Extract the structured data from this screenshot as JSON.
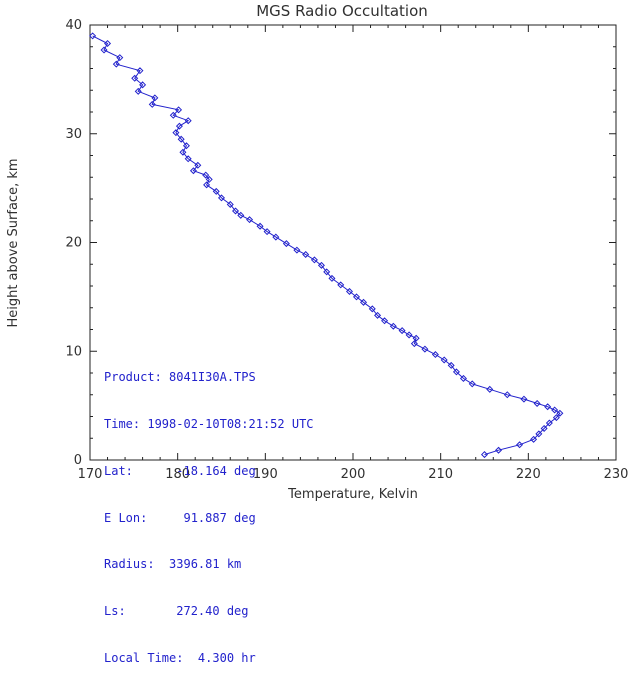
{
  "colors": {
    "line": "#2222cc",
    "axis": "#222222",
    "text": "#303030",
    "background": "#ffffff"
  },
  "annotation": {
    "lines": [
      "Product: 8041I30A.TPS",
      "Time: 1998-02-10T08:21:52 UTC",
      "Lat:      -18.164 deg",
      "E Lon:     91.887 deg",
      "Radius:  3396.81 km",
      "Ls:       272.40 deg",
      "Local Time:  4.300 hr"
    ]
  },
  "chart_data": {
    "type": "line",
    "title": "MGS Radio Occultation",
    "xlabel": "Temperature, Kelvin",
    "ylabel": "Height above Surface, km",
    "xlim": [
      170,
      230
    ],
    "ylim": [
      0,
      40
    ],
    "xticks": [
      170,
      180,
      190,
      200,
      210,
      220,
      230
    ],
    "yticks": [
      0,
      10,
      20,
      30,
      40
    ],
    "x_minor_step": 2,
    "y_minor_step": 2,
    "grid": false,
    "legend": "none",
    "line_color": "#2222cc",
    "marker": "diamond",
    "series": [
      {
        "name": "temperature-profile",
        "points": [
          [
            170.3,
            39.0
          ],
          [
            172.0,
            38.3
          ],
          [
            171.6,
            37.7
          ],
          [
            173.4,
            37.0
          ],
          [
            173.0,
            36.4
          ],
          [
            175.7,
            35.8
          ],
          [
            175.1,
            35.1
          ],
          [
            176.0,
            34.5
          ],
          [
            175.5,
            33.9
          ],
          [
            177.4,
            33.3
          ],
          [
            177.1,
            32.7
          ],
          [
            180.1,
            32.2
          ],
          [
            179.5,
            31.7
          ],
          [
            181.2,
            31.2
          ],
          [
            180.2,
            30.7
          ],
          [
            179.8,
            30.1
          ],
          [
            180.4,
            29.5
          ],
          [
            181.0,
            28.9
          ],
          [
            180.6,
            28.3
          ],
          [
            181.2,
            27.7
          ],
          [
            182.3,
            27.1
          ],
          [
            181.8,
            26.6
          ],
          [
            183.2,
            26.2
          ],
          [
            183.6,
            25.8
          ],
          [
            183.3,
            25.3
          ],
          [
            184.4,
            24.7
          ],
          [
            185.0,
            24.1
          ],
          [
            186.0,
            23.5
          ],
          [
            186.6,
            22.9
          ],
          [
            187.2,
            22.5
          ],
          [
            188.2,
            22.1
          ],
          [
            189.4,
            21.5
          ],
          [
            190.2,
            21.0
          ],
          [
            191.2,
            20.5
          ],
          [
            192.4,
            19.9
          ],
          [
            193.6,
            19.3
          ],
          [
            194.6,
            18.9
          ],
          [
            195.6,
            18.4
          ],
          [
            196.4,
            17.9
          ],
          [
            197.0,
            17.3
          ],
          [
            197.6,
            16.7
          ],
          [
            198.6,
            16.1
          ],
          [
            199.6,
            15.5
          ],
          [
            200.4,
            15.0
          ],
          [
            201.2,
            14.5
          ],
          [
            202.2,
            13.9
          ],
          [
            202.8,
            13.3
          ],
          [
            203.6,
            12.8
          ],
          [
            204.6,
            12.3
          ],
          [
            205.6,
            11.9
          ],
          [
            206.4,
            11.5
          ],
          [
            207.2,
            11.2
          ],
          [
            207.0,
            10.7
          ],
          [
            208.2,
            10.2
          ],
          [
            209.4,
            9.7
          ],
          [
            210.4,
            9.2
          ],
          [
            211.2,
            8.7
          ],
          [
            211.8,
            8.1
          ],
          [
            212.6,
            7.5
          ],
          [
            213.6,
            7.0
          ],
          [
            215.6,
            6.5
          ],
          [
            217.6,
            6.0
          ],
          [
            219.5,
            5.6
          ],
          [
            221.0,
            5.2
          ],
          [
            222.2,
            4.9
          ],
          [
            223.0,
            4.6
          ],
          [
            223.6,
            4.3
          ],
          [
            223.2,
            3.9
          ],
          [
            222.4,
            3.4
          ],
          [
            221.8,
            2.9
          ],
          [
            221.2,
            2.4
          ],
          [
            220.6,
            1.9
          ],
          [
            219.0,
            1.4
          ],
          [
            216.6,
            0.9
          ],
          [
            215.0,
            0.5
          ]
        ]
      }
    ]
  }
}
